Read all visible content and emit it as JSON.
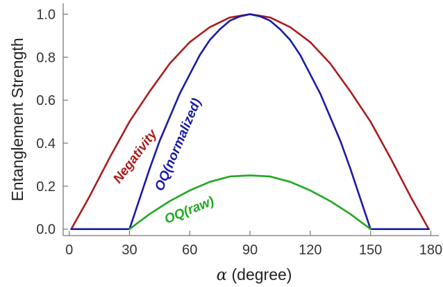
{
  "chart_data": {
    "type": "line",
    "xlabel_symbol": "α",
    "xlabel_text": " (degree)",
    "ylabel": "Entanglement Strength",
    "xlim": [
      -3,
      184
    ],
    "ylim": [
      -0.03,
      1.05
    ],
    "x_ticks": [
      0,
      30,
      60,
      90,
      120,
      150,
      180
    ],
    "y_ticks": [
      0.0,
      0.2,
      0.4,
      0.6,
      0.8,
      1.0
    ],
    "y_tick_labels": [
      "0.0",
      "0.2",
      "0.4",
      "0.6",
      "0.8",
      "1.0"
    ],
    "grid": false,
    "series": [
      {
        "name": "Negativity",
        "color": "#a81c1c",
        "x": [
          1,
          10,
          20,
          30,
          40,
          50,
          60,
          70,
          80,
          90,
          100,
          110,
          120,
          130,
          140,
          150,
          160,
          170,
          179
        ],
        "y": [
          0.0,
          0.15,
          0.33,
          0.5,
          0.64,
          0.77,
          0.87,
          0.94,
          0.985,
          1.0,
          0.985,
          0.94,
          0.87,
          0.77,
          0.64,
          0.5,
          0.33,
          0.15,
          0.0
        ]
      },
      {
        "name": "OQ(normalized)",
        "color": "#1a1aa6",
        "x": [
          1,
          30,
          35,
          40,
          45,
          50,
          55,
          60,
          65,
          70,
          75,
          80,
          85,
          90,
          95,
          100,
          105,
          110,
          115,
          120,
          125,
          130,
          135,
          140,
          145,
          150,
          179
        ],
        "y": [
          0.0,
          0.0,
          0.14,
          0.28,
          0.41,
          0.52,
          0.63,
          0.72,
          0.81,
          0.88,
          0.93,
          0.97,
          0.99,
          1.0,
          0.99,
          0.97,
          0.93,
          0.88,
          0.81,
          0.72,
          0.63,
          0.52,
          0.41,
          0.28,
          0.14,
          0.0,
          0.0
        ]
      },
      {
        "name": "OQ(raw)",
        "color": "#1fa81f",
        "x": [
          30,
          40,
          50,
          60,
          70,
          80,
          90,
          100,
          110,
          120,
          130,
          140,
          150
        ],
        "y": [
          0.0,
          0.07,
          0.13,
          0.18,
          0.22,
          0.245,
          0.25,
          0.245,
          0.22,
          0.18,
          0.13,
          0.07,
          0.0
        ]
      }
    ]
  }
}
